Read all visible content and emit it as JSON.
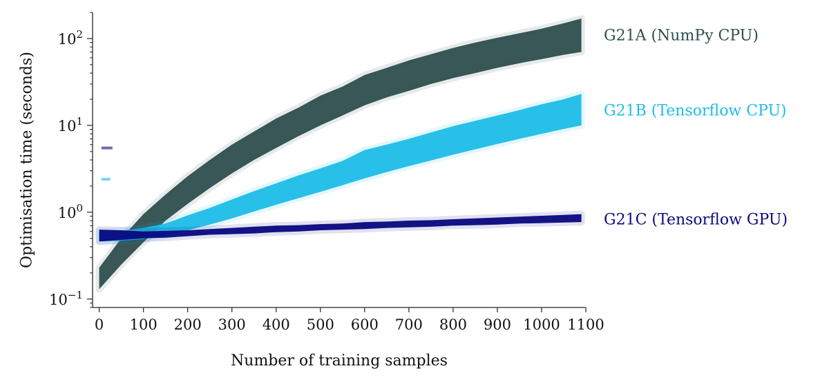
{
  "chart_data": {
    "type": "scatter",
    "title": "",
    "xlabel": "Number of training samples",
    "ylabel": "Optimisation time (seconds)",
    "xlim": [
      -15,
      1100
    ],
    "ylim": [
      0.08,
      200
    ],
    "yscale": "log",
    "grid": false,
    "xticks": [
      {
        "value": 0,
        "label": "0"
      },
      {
        "value": 100,
        "label": "100"
      },
      {
        "value": 200,
        "label": "200"
      },
      {
        "value": 300,
        "label": "300"
      },
      {
        "value": 400,
        "label": "400"
      },
      {
        "value": 500,
        "label": "500"
      },
      {
        "value": 600,
        "label": "600"
      },
      {
        "value": 700,
        "label": "700"
      },
      {
        "value": 800,
        "label": "800"
      },
      {
        "value": 900,
        "label": "900"
      },
      {
        "value": 1000,
        "label": "1000"
      },
      {
        "value": 1100,
        "label": "1100"
      }
    ],
    "yticks": [
      {
        "value": 0.1,
        "base": "10",
        "exp": "−1"
      },
      {
        "value": 1,
        "base": "10",
        "exp": "0"
      },
      {
        "value": 10,
        "base": "10",
        "exp": "1"
      },
      {
        "value": 100,
        "base": "10",
        "exp": "2"
      }
    ],
    "series": [
      {
        "name": "G21A (NumPy CPU)",
        "color": "#2f4f4f",
        "x": [
          0,
          50,
          100,
          150,
          200,
          250,
          300,
          350,
          400,
          450,
          500,
          550,
          600,
          650,
          700,
          750,
          800,
          850,
          900,
          950,
          1000,
          1050,
          1090
        ],
        "median": [
          0.17,
          0.35,
          0.65,
          1.1,
          1.8,
          2.8,
          4.2,
          6.0,
          8.5,
          11.5,
          15.5,
          20,
          27,
          33,
          40,
          47,
          55,
          63,
          72,
          80,
          90,
          100,
          110
        ],
        "low": [
          0.13,
          0.25,
          0.45,
          0.8,
          1.25,
          1.9,
          2.8,
          4.0,
          5.5,
          7.5,
          10,
          13,
          17,
          21,
          25,
          30,
          35,
          40,
          46,
          52,
          58,
          65,
          70
        ],
        "high": [
          0.23,
          0.5,
          0.95,
          1.6,
          2.6,
          4.0,
          6.0,
          8.5,
          12,
          16,
          22,
          28,
          38,
          46,
          56,
          66,
          78,
          90,
          102,
          115,
          130,
          150,
          170
        ]
      },
      {
        "name": "G21B (Tensorflow CPU)",
        "color": "#1ebde8",
        "x": [
          0,
          50,
          100,
          150,
          200,
          250,
          300,
          350,
          400,
          450,
          500,
          550,
          600,
          650,
          700,
          750,
          800,
          850,
          900,
          950,
          1000,
          1050,
          1090
        ],
        "median": [
          0.52,
          0.53,
          0.56,
          0.62,
          0.75,
          0.9,
          1.1,
          1.35,
          1.65,
          2.0,
          2.4,
          2.9,
          3.5,
          4.2,
          5.0,
          5.8,
          6.8,
          7.8,
          9.0,
          10.3,
          11.8,
          13.5,
          15.0
        ],
        "low": [
          0.46,
          0.47,
          0.49,
          0.54,
          0.62,
          0.72,
          0.85,
          1.02,
          1.22,
          1.45,
          1.72,
          2.05,
          2.45,
          2.9,
          3.4,
          3.95,
          4.6,
          5.3,
          6.1,
          7.0,
          8.0,
          9.1,
          10.0
        ],
        "high": [
          0.6,
          0.61,
          0.66,
          0.74,
          0.92,
          1.12,
          1.4,
          1.75,
          2.15,
          2.65,
          3.2,
          3.9,
          5.2,
          6.0,
          7.0,
          8.3,
          9.8,
          11.3,
          13,
          15,
          17.5,
          20,
          23
        ]
      },
      {
        "name": "G21C (Tensorflow GPU)",
        "color": "#0a0a80",
        "x": [
          0,
          50,
          100,
          150,
          200,
          250,
          300,
          350,
          400,
          450,
          500,
          550,
          600,
          650,
          700,
          750,
          800,
          850,
          900,
          950,
          1000,
          1050,
          1090
        ],
        "median": [
          0.52,
          0.53,
          0.54,
          0.55,
          0.57,
          0.59,
          0.61,
          0.62,
          0.64,
          0.65,
          0.67,
          0.68,
          0.7,
          0.71,
          0.72,
          0.74,
          0.75,
          0.77,
          0.78,
          0.8,
          0.81,
          0.83,
          0.84
        ],
        "low": [
          0.46,
          0.48,
          0.5,
          0.51,
          0.53,
          0.55,
          0.56,
          0.57,
          0.59,
          0.6,
          0.62,
          0.63,
          0.64,
          0.66,
          0.67,
          0.68,
          0.7,
          0.71,
          0.72,
          0.74,
          0.75,
          0.76,
          0.77
        ],
        "high": [
          0.63,
          0.62,
          0.6,
          0.61,
          0.62,
          0.64,
          0.66,
          0.68,
          0.7,
          0.71,
          0.73,
          0.74,
          0.77,
          0.78,
          0.8,
          0.81,
          0.83,
          0.85,
          0.87,
          0.89,
          0.91,
          0.93,
          0.95
        ]
      }
    ],
    "outliers": [
      {
        "series": "G21C (Tensorflow GPU)",
        "x": [
          5,
          30
        ],
        "y": 5.5
      },
      {
        "series": "G21B (Tensorflow CPU)",
        "x": [
          5,
          25
        ],
        "y": 2.4
      }
    ],
    "legend_placement": "right, labels at end of each series"
  }
}
